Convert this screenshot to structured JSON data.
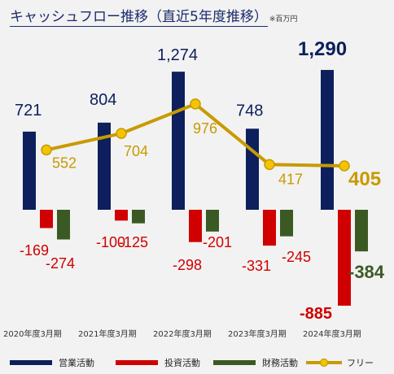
{
  "title": "キャッシュフロー推移（直近5年度推移）",
  "unit_note": "※百万円",
  "chart_data": {
    "type": "bar",
    "categories": [
      "2020年度3月期",
      "2021年度3月期",
      "2022年度3月期",
      "2023年度3月期",
      "2024年度3月期"
    ],
    "series": [
      {
        "name": "営業活動",
        "values": [
          721,
          804,
          1274,
          748,
          1290
        ]
      },
      {
        "name": "投資活動",
        "values": [
          -169,
          -100,
          -298,
          -331,
          -885
        ]
      },
      {
        "name": "財務活動",
        "values": [
          -274,
          -125,
          -201,
          -245,
          -384
        ]
      },
      {
        "name": "フリー",
        "type": "line",
        "values": [
          552,
          704,
          976,
          417,
          405
        ]
      }
    ],
    "value_labels": {
      "operating": [
        "721",
        "804",
        "1,274",
        "748",
        "1,290"
      ],
      "investing": [
        "-169",
        "-100",
        "-298",
        "-331",
        "-885"
      ],
      "financing": [
        "-274",
        "-125",
        "-201",
        "-245",
        "-384"
      ],
      "free": [
        "552",
        "704",
        "976",
        "417",
        "405"
      ]
    },
    "colors": {
      "operating": "#0d1f5c",
      "investing": "#d10000",
      "financing": "#3b5a23",
      "free": "#c89a00",
      "free_marker": "#f3c400",
      "axis_label": "#333333"
    },
    "legend_position": "bottom",
    "grid": false
  }
}
